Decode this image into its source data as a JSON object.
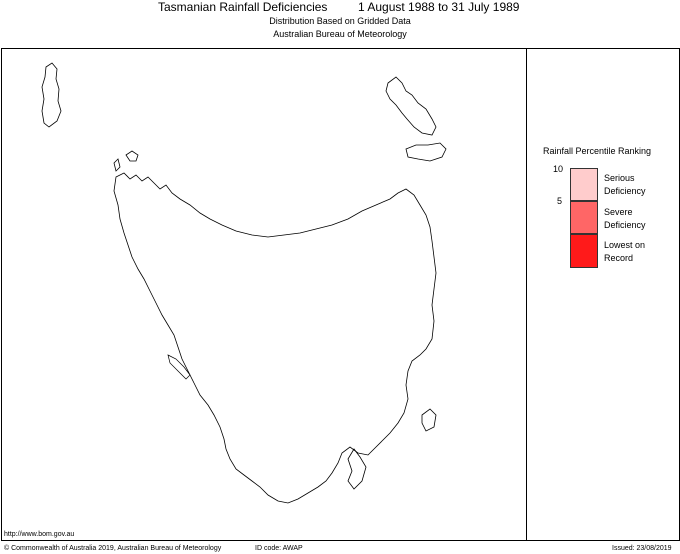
{
  "title": "Tasmanian Rainfall Deficiencies",
  "period": "1 August 1988 to 31 July 1989",
  "subtitle_1": "Distribution Based on Gridded Data",
  "subtitle_2": "Australian Bureau of Meteorology",
  "legend": {
    "title": "Rainfall Percentile Ranking",
    "ticks": [
      "10",
      "5"
    ],
    "classes": [
      {
        "label": "Serious Deficiency",
        "color": "#ffcccc"
      },
      {
        "label": "Severe Deficiency",
        "color": "#ff6666"
      },
      {
        "label": "Lowest on Record",
        "color": "#ff1a1a"
      }
    ]
  },
  "url": "http://www.bom.gov.au",
  "footer": {
    "copyright": "© Commonwealth of Australia 2019, Australian Bureau of Meteorology",
    "id_code": "ID code: AWAP",
    "issued": "Issued: 23/08/2019"
  }
}
